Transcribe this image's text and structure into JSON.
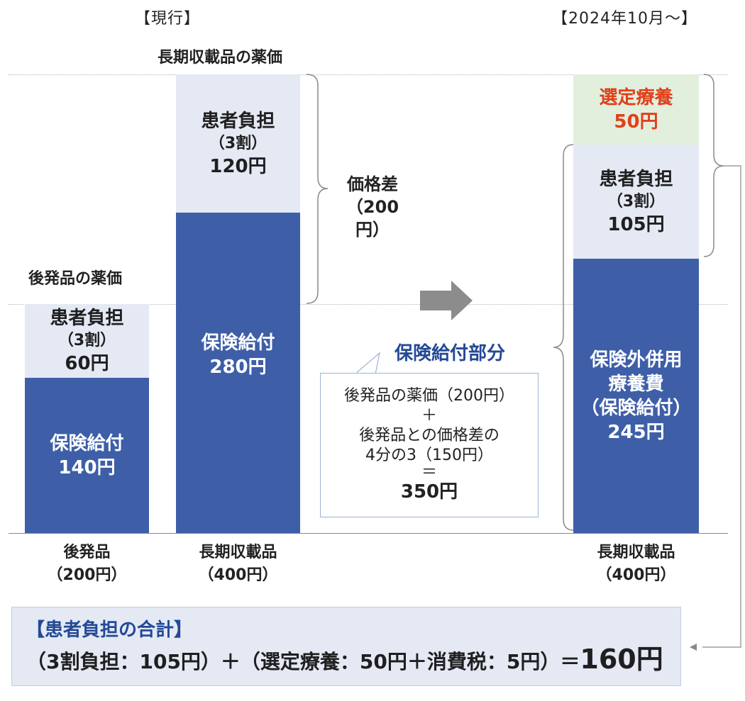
{
  "headers": {
    "current": "【現行】",
    "future": "【2024年10月～】",
    "long_term_price": "長期収載品の薬価",
    "generic_price": "後発品の薬価"
  },
  "generic_bar": {
    "patient": {
      "title": "患者負担",
      "ratio": "（3割）",
      "amount": "60円"
    },
    "insurance": {
      "title": "保険給付",
      "amount": "140円"
    }
  },
  "long_term_bar": {
    "patient": {
      "title": "患者負担",
      "ratio": "（3割）",
      "amount": "120円"
    },
    "insurance": {
      "title": "保険給付",
      "amount": "280円"
    }
  },
  "price_gap": {
    "title": "価格差",
    "amount": "（200円）"
  },
  "insurance_portion": "保険給付部分",
  "callout": {
    "line1": "後発品の薬価（200円）",
    "plus": "＋",
    "line2": "後発品との価格差の",
    "line3": "4分の3（150円）",
    "equals": "＝",
    "result": "350円"
  },
  "future_bar": {
    "selected": {
      "title": "選定療養",
      "amount": "50円"
    },
    "patient": {
      "title": "患者負担",
      "ratio": "（3割）",
      "amount": "105円"
    },
    "insurance": {
      "line1": "保険外併用",
      "line2": "療養費",
      "line3": "（保険給付）",
      "amount": "245円"
    }
  },
  "categories": {
    "generic": {
      "name": "後発品",
      "price": "（200円）"
    },
    "long_term": {
      "name": "長期収載品",
      "price": "（400円）"
    },
    "long_term_future": {
      "name": "長期収載品",
      "price": "（400円）"
    }
  },
  "summary": {
    "title": "【患者負担の合計】",
    "formula": "（3割負担：105円）＋（選定療養：50円＋消費税：5円）＝",
    "total": "160円"
  },
  "colors": {
    "light": "#e4e9f4",
    "dark": "#3e5fa8",
    "green": "#e3efdd",
    "red": "#e0401b",
    "blue_text": "#244996",
    "arrow": "#8c8c8c"
  }
}
